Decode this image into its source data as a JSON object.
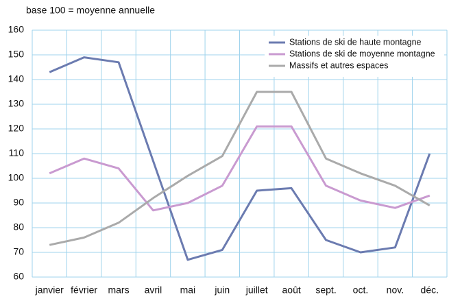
{
  "chart_data": {
    "type": "line",
    "subtitle": "base 100 = moyenne annuelle",
    "categories": [
      "janvier",
      "février",
      "mars",
      "avril",
      "mai",
      "juin",
      "juillet",
      "août",
      "sept.",
      "oct.",
      "nov.",
      "déc."
    ],
    "series": [
      {
        "name": "Stations de ski de haute montagne",
        "color": "#6b7bb0",
        "values": [
          143,
          149,
          147,
          107,
          67,
          71,
          95,
          96,
          75,
          70,
          72,
          110
        ]
      },
      {
        "name": "Stations de ski de moyenne montagne",
        "color": "#c99ad0",
        "values": [
          102,
          108,
          104,
          87,
          90,
          97,
          121,
          121,
          97,
          91,
          88,
          93
        ]
      },
      {
        "name": "Massifs et autres espaces",
        "color": "#aaaaaa",
        "values": [
          73,
          76,
          82,
          92,
          101,
          109,
          135,
          135,
          108,
          102,
          97,
          89
        ]
      }
    ],
    "ylim": [
      60,
      160
    ],
    "yticks": [
      60,
      70,
      80,
      90,
      100,
      110,
      120,
      130,
      140,
      150,
      160
    ],
    "grid": true,
    "legend": "top-right"
  }
}
